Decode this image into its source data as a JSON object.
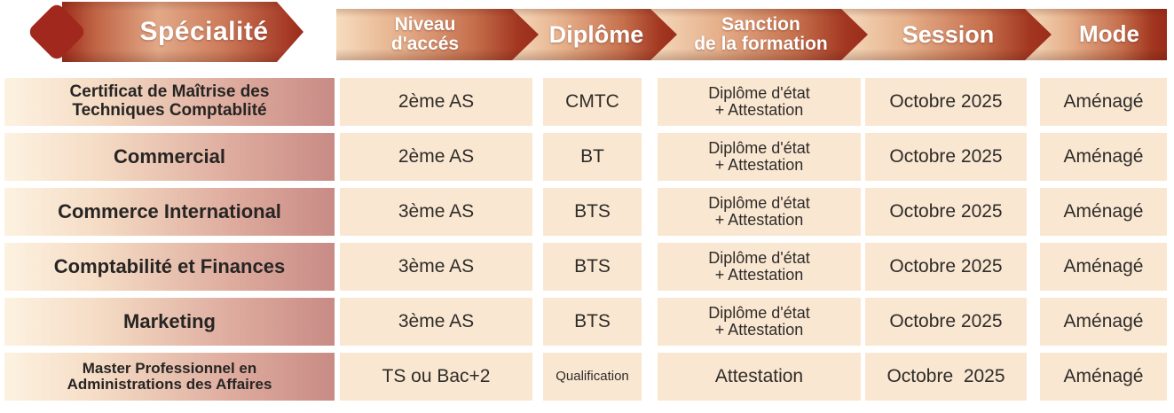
{
  "colors": {
    "brick_red": "#9e2d1b",
    "diamond_red": "#a1281c",
    "copper_light": "#e5af8a",
    "ribbon_cream": "#f6dcbe",
    "cell_peach": "#fae7d1",
    "col1_rose": "#c88b85",
    "col1_cream": "#fdf2e1",
    "header_text": "#ffffff",
    "body_text": "#2e2c2a"
  },
  "header": {
    "specialite": "Spécialité",
    "niveau": "Niveau\nd'accés",
    "diplome": "Diplôme",
    "sanction": "Sanction\nde la formation",
    "session": "Session",
    "mode": "Mode"
  },
  "rows": [
    {
      "specialite": "Certificat de Maîtrise des\nTechniques Comptablité",
      "niveau": "2ème AS",
      "diplome": "CMTC",
      "sanction": "Diplôme d'état\n+ Attestation",
      "session": "Octobre 2025",
      "mode": "Aménagé"
    },
    {
      "specialite": "Commercial",
      "niveau": "2ème AS",
      "diplome": "BT",
      "sanction": "Diplôme d'état\n+ Attestation",
      "session": "Octobre 2025",
      "mode": "Aménagé"
    },
    {
      "specialite": "Commerce International",
      "niveau": "3ème AS",
      "diplome": "BTS",
      "sanction": "Diplôme d'état\n+ Attestation",
      "session": "Octobre 2025",
      "mode": "Aménagé"
    },
    {
      "specialite": "Comptabilité et Finances",
      "niveau": "3ème AS",
      "diplome": "BTS",
      "sanction": "Diplôme d'état\n+ Attestation",
      "session": "Octobre 2025",
      "mode": "Aménagé"
    },
    {
      "specialite": "Marketing",
      "niveau": "3ème AS",
      "diplome": "BTS",
      "sanction": "Diplôme d'état\n+ Attestation",
      "session": "Octobre 2025",
      "mode": "Aménagé"
    },
    {
      "specialite": "Master Professionnel en\nAdministrations des Affaires",
      "niveau": "TS ou Bac+2",
      "diplome": "Qualification",
      "sanction": "Attestation",
      "session": "Octobre  2025",
      "mode": "Aménagé"
    }
  ]
}
